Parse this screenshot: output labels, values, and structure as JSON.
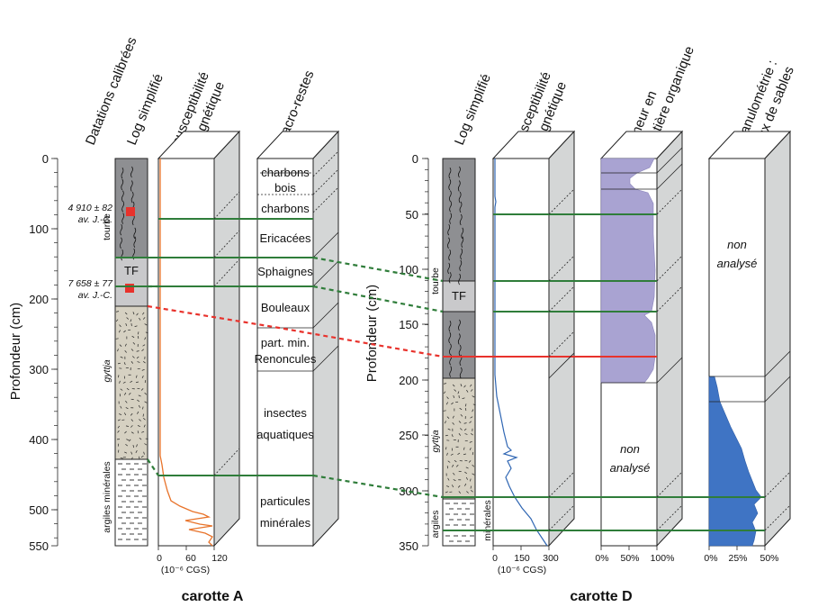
{
  "headers": {
    "a_datations": "Datations calibrées",
    "a_log": "Log simplifié",
    "a_susc_1": "susceptibilité",
    "a_susc_2": "magnétique",
    "a_macro": "macro-restes",
    "d_log": "Log simplifié",
    "d_susc_1": "susceptibilité",
    "d_susc_2": "magnétique",
    "d_mo_1": "teneur en",
    "d_mo_2": "matière organique",
    "d_gran_1": "granulométrie :",
    "d_gran_2": "taux de sables"
  },
  "axis_a": {
    "label": "Profondeur (cm)",
    "ticks": [
      "0",
      "100",
      "200",
      "300",
      "400",
      "500",
      "550"
    ]
  },
  "axis_d": {
    "label": "Profondeur (cm)",
    "ticks": [
      "0",
      "50",
      "100",
      "150",
      "200",
      "250",
      "300",
      "350"
    ]
  },
  "carotte_a": {
    "title": "carotte A",
    "dates": [
      {
        "line1": "4 910 ± 82",
        "line2": "av. J.-C."
      },
      {
        "line1": "7 658 ± 77",
        "line2": "av. J.-C."
      }
    ],
    "units": {
      "tourbe": "tourbe",
      "tf": "TF",
      "gyttja": "gyttja",
      "argiles": "argiles minérales"
    },
    "susc_ticks": [
      "0",
      "60",
      "120"
    ],
    "susc_unit": "(10⁻⁶ CGS)",
    "macro": [
      "charbons",
      "bois",
      "charbons",
      "Ericacées",
      "Sphaignes",
      "Bouleaux",
      "part. min.",
      "Renoncules",
      "insectes",
      "aquatiques",
      "particules",
      "minérales"
    ]
  },
  "carotte_d": {
    "title": "carotte D",
    "units": {
      "tourbe": "tourbe",
      "tf": "TF",
      "gyttja": "gyttja",
      "argiles": "argiles",
      "minerales": "minérales"
    },
    "susc_ticks": [
      "0",
      "150",
      "300"
    ],
    "susc_unit": "(10⁻⁶ CGS)",
    "mo_ticks": [
      "0%",
      "50%",
      "100%"
    ],
    "gran_ticks": [
      "0%",
      "25%",
      "50%"
    ],
    "non_analyse_1": "non",
    "non_analyse_2": "analysé"
  },
  "colors": {
    "peat": "#8e8f92",
    "tf": "#c9c9cb",
    "gyttja": "#d6d1c2",
    "susceptibility_a": "#e8732a",
    "susceptibility_d": "#2f66b3",
    "organic_matter": "#a9a3d2",
    "sand": "#3f74c4",
    "correlation_green": "#2f7d3a",
    "correlation_red": "#e8322c"
  }
}
